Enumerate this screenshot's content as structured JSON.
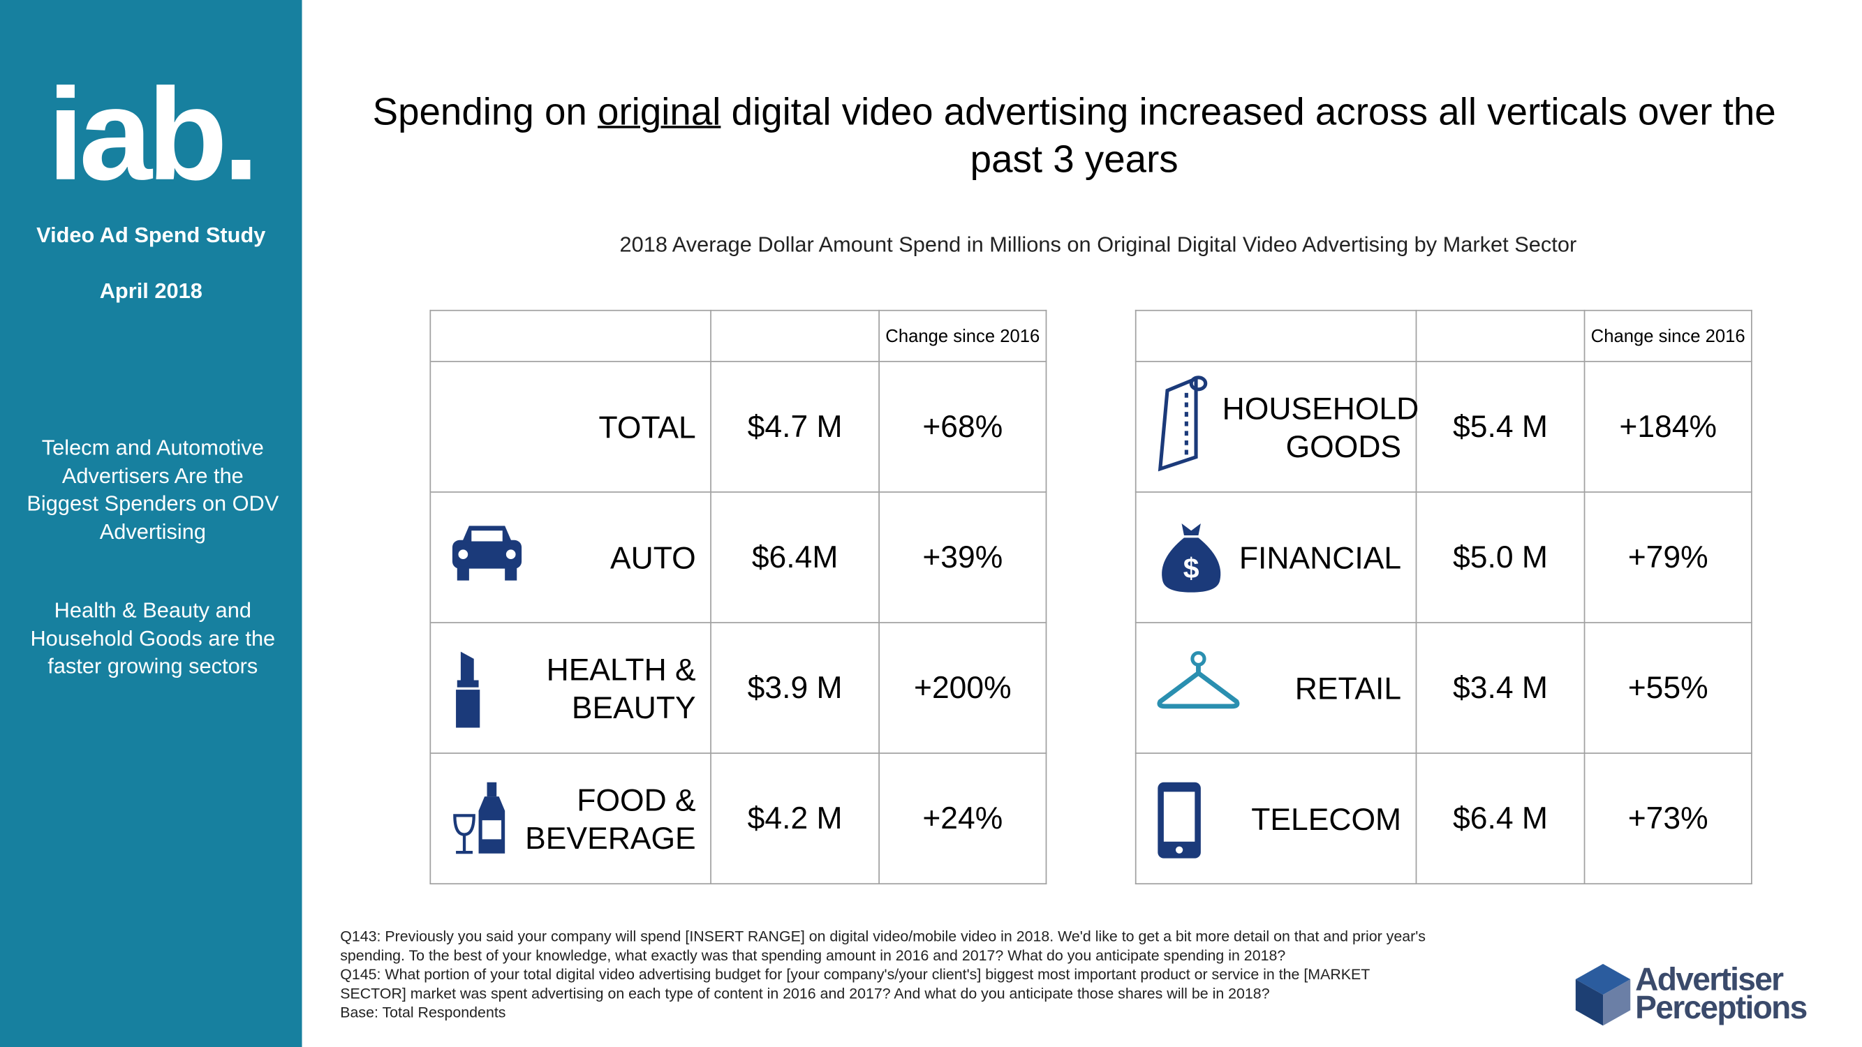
{
  "sidebar": {
    "logo": "iab.",
    "study": "Video Ad Spend Study",
    "date": "April 2018",
    "notes": [
      "Telecm and Automotive Advertisers Are the Biggest Spenders on ODV Advertising",
      "Health & Beauty and Household Goods are the faster growing sectors"
    ]
  },
  "header": {
    "title_before": "Spending on",
    "title_emphasis": "original",
    "title_after": "digital video advertising increased across all verticals over the past 3 years",
    "subtitle": "2018 Average Dollar Amount Spend in Millions on Original Digital Video Advertising by Market Sector"
  },
  "tables": [
    {
      "change_header": "Change since 2016",
      "rows": [
        {
          "sector": "TOTAL",
          "spend": "$4.7 M",
          "change": "+68%"
        },
        {
          "sector": "AUTO",
          "spend": "$6.4M",
          "change": "+39%"
        },
        {
          "sector": "HEALTH & BEAUTY",
          "spend": "$3.9 M",
          "change": "+200%"
        },
        {
          "sector": "FOOD & BEVERAGE",
          "spend": "$4.2 M",
          "change": "+24%"
        }
      ]
    },
    {
      "change_header": "Change since 2016",
      "rows": [
        {
          "sector": "HOUSEHOLD GOODS",
          "spend": "$5.4 M",
          "change": "+184%"
        },
        {
          "sector": "FINANCIAL",
          "spend": "$5.0 M",
          "change": "+79%"
        },
        {
          "sector": "RETAIL",
          "spend": "$3.4 M",
          "change": "+55%"
        },
        {
          "sector": "TELECOM",
          "spend": "$6.4 M",
          "change": "+73%"
        }
      ]
    }
  ],
  "footnote": [
    "Q143: Previously you said your company will spend [INSERT RANGE] on digital video/mobile video in 2018.  We'd like to get a bit more detail on that and prior year's spending.  To the best of your knowledge, what exactly was that spending amount in 2016 and 2017? What do you anticipate spending in 2018?",
    "Q145:  What portion of your total digital video advertising budget for [your company's/your client's] biggest most important product or service in the [MARKET SECTOR] market was spent advertising on each type of content in 2016 and 2017? And what do you anticipate those shares will be in 2018?",
    "Base: Total Respondents"
  ],
  "brand": {
    "line1": "Advertiser",
    "line2": "Perceptions"
  }
}
